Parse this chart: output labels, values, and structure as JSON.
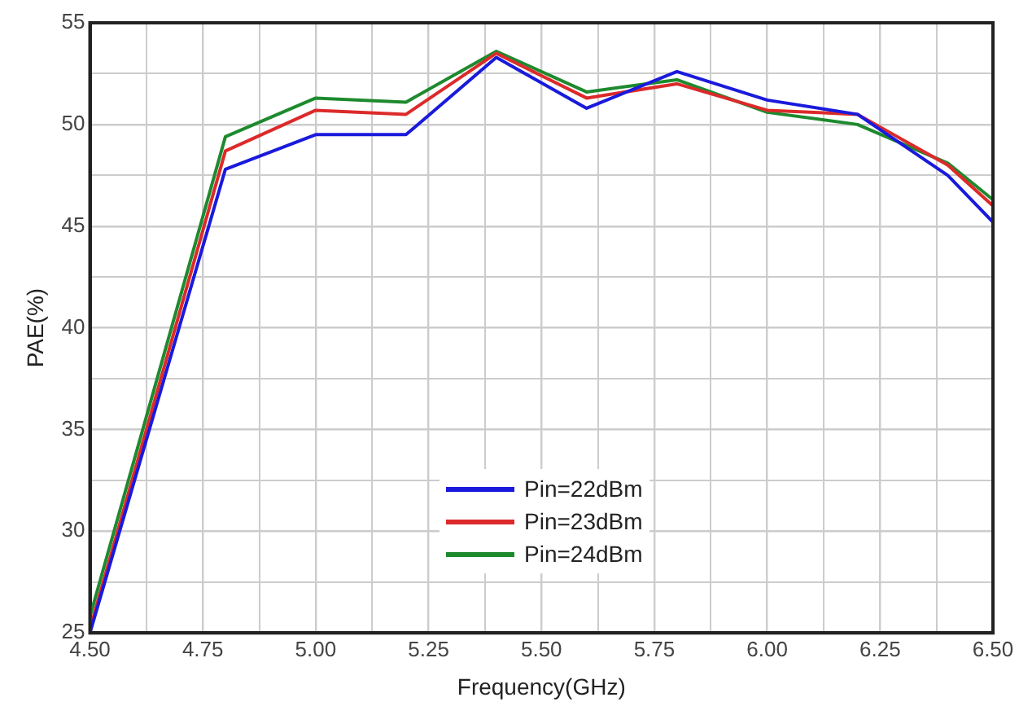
{
  "chart_data": {
    "type": "line",
    "xlabel": "Frequency(GHz)",
    "ylabel": "PAE(%)",
    "x": [
      4.5,
      4.8,
      5.0,
      5.2,
      5.4,
      5.6,
      5.8,
      6.0,
      6.2,
      6.4,
      6.5
    ],
    "series": [
      {
        "name": "Pin=22dBm",
        "color": "#1a1adc",
        "values": [
          25,
          47.8,
          49.5,
          49.5,
          53.3,
          50.8,
          52.6,
          51.2,
          50.5,
          47.5,
          45.2
        ]
      },
      {
        "name": "Pin=23dBm",
        "color": "#dc2a2a",
        "values": [
          25.2,
          48.7,
          50.7,
          50.5,
          53.5,
          51.3,
          52.0,
          50.7,
          50.5,
          48.0,
          46.0
        ]
      },
      {
        "name": "Pin=24dBm",
        "color": "#1e8a2e",
        "values": [
          25.8,
          49.4,
          51.3,
          51.1,
          53.6,
          51.6,
          52.2,
          50.6,
          50.0,
          48.1,
          46.3
        ]
      }
    ],
    "xlim": [
      4.5,
      6.5
    ],
    "xticks": [
      {
        "value": 4.5,
        "label": "4.50"
      },
      {
        "value": 4.625,
        "label": null
      },
      {
        "value": 4.75,
        "label": "4.75"
      },
      {
        "value": 4.875,
        "label": null
      },
      {
        "value": 5.0,
        "label": "5.00"
      },
      {
        "value": 5.125,
        "label": null
      },
      {
        "value": 5.25,
        "label": "5.25"
      },
      {
        "value": 5.375,
        "label": null
      },
      {
        "value": 5.5,
        "label": "5.50"
      },
      {
        "value": 5.625,
        "label": null
      },
      {
        "value": 5.75,
        "label": "5.75"
      },
      {
        "value": 5.875,
        "label": null
      },
      {
        "value": 6.0,
        "label": "6.00"
      },
      {
        "value": 6.125,
        "label": null
      },
      {
        "value": 6.25,
        "label": "6.25"
      },
      {
        "value": 6.375,
        "label": null
      },
      {
        "value": 6.5,
        "label": "6.50"
      }
    ],
    "ylim": [
      25,
      55
    ],
    "yticks": [
      25,
      {
        "value": 27.5,
        "label": null
      },
      30,
      {
        "value": 32.5,
        "label": null
      },
      35,
      {
        "value": 37.5,
        "label": null
      },
      40,
      {
        "value": 42.5,
        "label": null
      },
      45,
      {
        "value": 47.5,
        "label": null
      },
      50,
      {
        "value": 52.5,
        "label": null
      },
      55
    ],
    "grid": true,
    "legend": "bottom",
    "marker": "none",
    "line_style": "solid"
  }
}
